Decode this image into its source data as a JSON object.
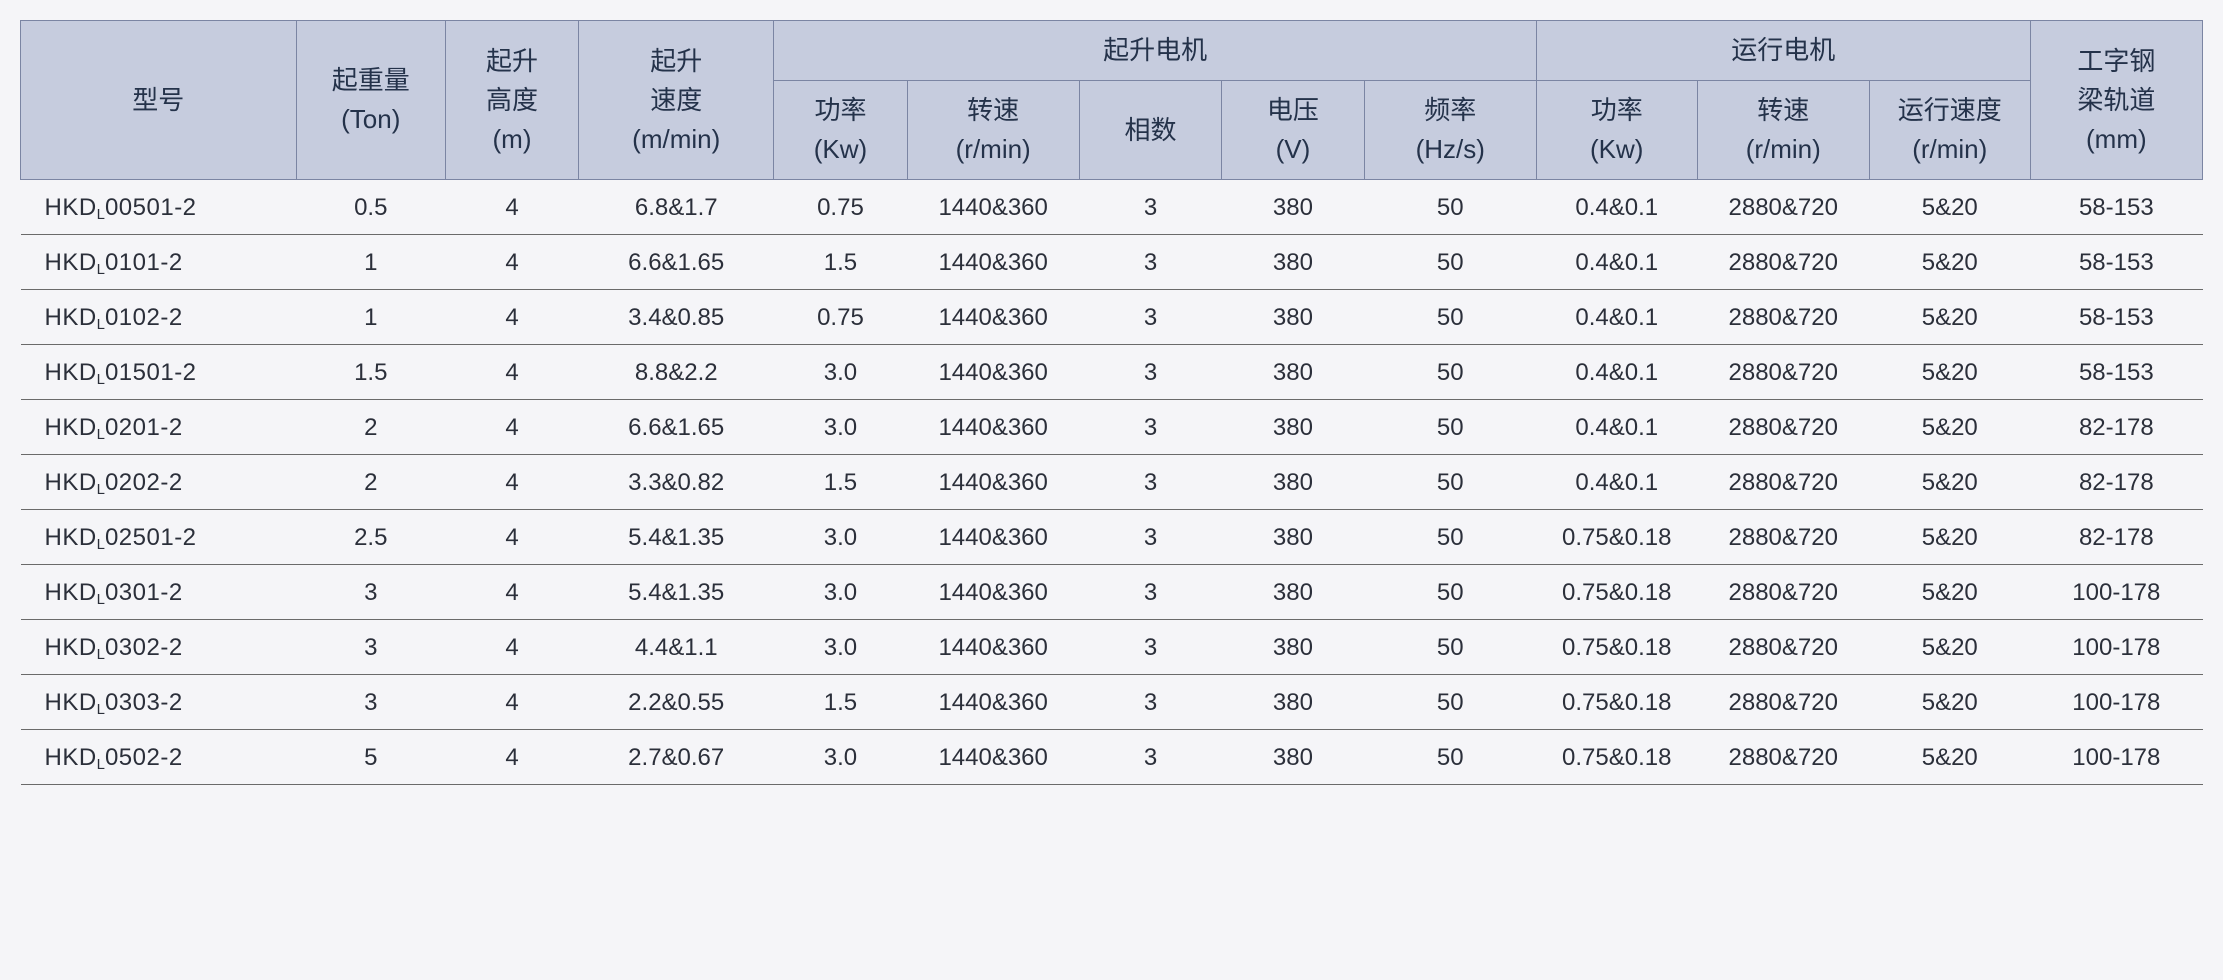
{
  "style": {
    "header_bg": "#c6ccde",
    "header_border": "#7b85a3",
    "row_border": "#6a6a6a",
    "text_color": "#2b2f3a",
    "page_bg": "#f5f5f8",
    "header_fontsize_pt": 20,
    "body_fontsize_pt": 18,
    "font_weight_header": "normal",
    "font_weight_body": "normal",
    "column_count": 13,
    "column_widths_pct": [
      12.0,
      6.5,
      5.8,
      8.5,
      5.8,
      7.5,
      6.2,
      6.2,
      7.5,
      7.0,
      7.5,
      7.0,
      7.5
    ]
  },
  "headers": {
    "model": "型号",
    "capacity": "起重量\n(Ton)",
    "lift_height": "起升\n高度\n(m)",
    "lift_speed": "起升\n速度\n(m/min)",
    "lift_motor_group": "起升电机",
    "lift_power": "功率\n(Kw)",
    "lift_rpm": "转速\n(r/min)",
    "phase": "相数",
    "voltage": "电压\n(V)",
    "frequency": "频率\n(Hz/s)",
    "travel_motor_group": "运行电机",
    "travel_power": "功率\n(Kw)",
    "travel_rpm": "转速\n(r/min)",
    "travel_speed": "运行速度\n(r/min)",
    "beam": "工字钢\n梁轨道\n(mm)"
  },
  "model_prefix": "HKD",
  "model_sub": "L",
  "rows": [
    {
      "model_suffix": "00501-2",
      "capacity": "0.5",
      "lift_height": "4",
      "lift_speed": "6.8&1.7",
      "lift_power": "0.75",
      "lift_rpm": "1440&360",
      "phase": "3",
      "voltage": "380",
      "frequency": "50",
      "travel_power": "0.4&0.1",
      "travel_rpm": "2880&720",
      "travel_speed": "5&20",
      "beam": "58-153"
    },
    {
      "model_suffix": "0101-2",
      "capacity": "1",
      "lift_height": "4",
      "lift_speed": "6.6&1.65",
      "lift_power": "1.5",
      "lift_rpm": "1440&360",
      "phase": "3",
      "voltage": "380",
      "frequency": "50",
      "travel_power": "0.4&0.1",
      "travel_rpm": "2880&720",
      "travel_speed": "5&20",
      "beam": "58-153"
    },
    {
      "model_suffix": "0102-2",
      "capacity": "1",
      "lift_height": "4",
      "lift_speed": "3.4&0.85",
      "lift_power": "0.75",
      "lift_rpm": "1440&360",
      "phase": "3",
      "voltage": "380",
      "frequency": "50",
      "travel_power": "0.4&0.1",
      "travel_rpm": "2880&720",
      "travel_speed": "5&20",
      "beam": "58-153"
    },
    {
      "model_suffix": "01501-2",
      "capacity": "1.5",
      "lift_height": "4",
      "lift_speed": "8.8&2.2",
      "lift_power": "3.0",
      "lift_rpm": "1440&360",
      "phase": "3",
      "voltage": "380",
      "frequency": "50",
      "travel_power": "0.4&0.1",
      "travel_rpm": "2880&720",
      "travel_speed": "5&20",
      "beam": "58-153"
    },
    {
      "model_suffix": "0201-2",
      "capacity": "2",
      "lift_height": "4",
      "lift_speed": "6.6&1.65",
      "lift_power": "3.0",
      "lift_rpm": "1440&360",
      "phase": "3",
      "voltage": "380",
      "frequency": "50",
      "travel_power": "0.4&0.1",
      "travel_rpm": "2880&720",
      "travel_speed": "5&20",
      "beam": "82-178"
    },
    {
      "model_suffix": "0202-2",
      "capacity": "2",
      "lift_height": "4",
      "lift_speed": "3.3&0.82",
      "lift_power": "1.5",
      "lift_rpm": "1440&360",
      "phase": "3",
      "voltage": "380",
      "frequency": "50",
      "travel_power": "0.4&0.1",
      "travel_rpm": "2880&720",
      "travel_speed": "5&20",
      "beam": "82-178"
    },
    {
      "model_suffix": "02501-2",
      "capacity": "2.5",
      "lift_height": "4",
      "lift_speed": "5.4&1.35",
      "lift_power": "3.0",
      "lift_rpm": "1440&360",
      "phase": "3",
      "voltage": "380",
      "frequency": "50",
      "travel_power": "0.75&0.18",
      "travel_rpm": "2880&720",
      "travel_speed": "5&20",
      "beam": "82-178"
    },
    {
      "model_suffix": "0301-2",
      "capacity": "3",
      "lift_height": "4",
      "lift_speed": "5.4&1.35",
      "lift_power": "3.0",
      "lift_rpm": "1440&360",
      "phase": "3",
      "voltage": "380",
      "frequency": "50",
      "travel_power": "0.75&0.18",
      "travel_rpm": "2880&720",
      "travel_speed": "5&20",
      "beam": "100-178"
    },
    {
      "model_suffix": "0302-2",
      "capacity": "3",
      "lift_height": "4",
      "lift_speed": "4.4&1.1",
      "lift_power": "3.0",
      "lift_rpm": "1440&360",
      "phase": "3",
      "voltage": "380",
      "frequency": "50",
      "travel_power": "0.75&0.18",
      "travel_rpm": "2880&720",
      "travel_speed": "5&20",
      "beam": "100-178"
    },
    {
      "model_suffix": "0303-2",
      "capacity": "3",
      "lift_height": "4",
      "lift_speed": "2.2&0.55",
      "lift_power": "1.5",
      "lift_rpm": "1440&360",
      "phase": "3",
      "voltage": "380",
      "frequency": "50",
      "travel_power": "0.75&0.18",
      "travel_rpm": "2880&720",
      "travel_speed": "5&20",
      "beam": "100-178"
    },
    {
      "model_suffix": "0502-2",
      "capacity": "5",
      "lift_height": "4",
      "lift_speed": "2.7&0.67",
      "lift_power": "3.0",
      "lift_rpm": "1440&360",
      "phase": "3",
      "voltage": "380",
      "frequency": "50",
      "travel_power": "0.75&0.18",
      "travel_rpm": "2880&720",
      "travel_speed": "5&20",
      "beam": "100-178"
    }
  ]
}
